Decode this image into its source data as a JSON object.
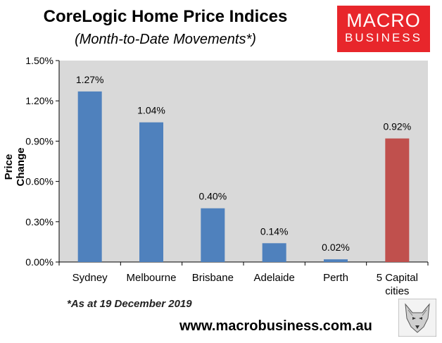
{
  "title": "CoreLogic Home Price Indices",
  "subtitle": "(Month-to-Date Movements*)",
  "logo": {
    "line1": "MACRO",
    "line2": "BUSINESS"
  },
  "note": "*As at 19 December 2019",
  "url": "www.macrobusiness.com.au",
  "chart_data": {
    "type": "bar",
    "ylabel": "Price Change",
    "ylim": [
      0,
      1.5
    ],
    "yticks": [
      "0.00%",
      "0.30%",
      "0.60%",
      "0.90%",
      "1.20%",
      "1.50%"
    ],
    "categories": [
      [
        "Sydney"
      ],
      [
        "Melbourne"
      ],
      [
        "Brisbane"
      ],
      [
        "Adelaide"
      ],
      [
        "Perth"
      ],
      [
        "5 Capital",
        "cities"
      ]
    ],
    "values": [
      1.27,
      1.04,
      0.4,
      0.14,
      0.02,
      0.92
    ],
    "data_labels": [
      "1.27%",
      "1.04%",
      "0.40%",
      "0.14%",
      "0.02%",
      "0.92%"
    ],
    "colors": [
      "#4f81bd",
      "#4f81bd",
      "#4f81bd",
      "#4f81bd",
      "#4f81bd",
      "#c0504d"
    ],
    "grid": false,
    "legend": "none"
  }
}
